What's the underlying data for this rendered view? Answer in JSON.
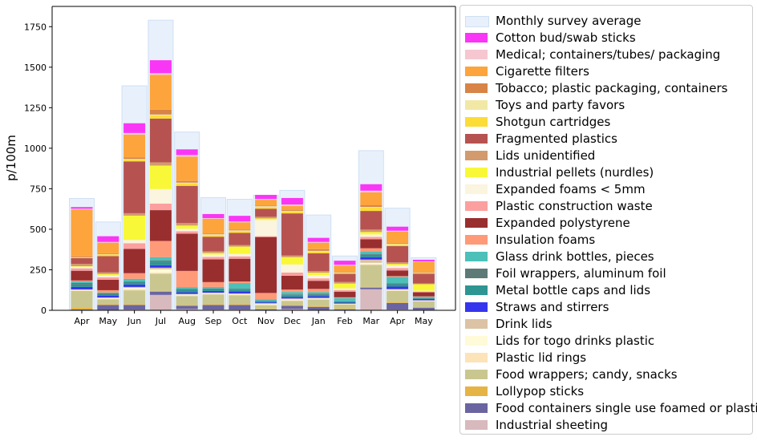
{
  "chart_data": {
    "type": "bar",
    "stacked": true,
    "ylabel": "p/100m",
    "xlabel": "",
    "ylim": [
      0,
      1875
    ],
    "yticks": [
      0,
      250,
      500,
      750,
      1000,
      1250,
      1500,
      1750
    ],
    "categories": [
      "Apr",
      "May",
      "Jun",
      "Jul",
      "Aug",
      "Sep",
      "Oct",
      "Nov",
      "Dec",
      "Jan",
      "Feb",
      "Mar",
      "Apr",
      "May"
    ],
    "background_series": {
      "name": "Monthly survey average",
      "color": "#e8f1fb",
      "edge": "#cfe0f3",
      "values": [
        690,
        545,
        1385,
        1790,
        1100,
        695,
        685,
        710,
        740,
        588,
        335,
        985,
        630,
        325
      ]
    },
    "series": [
      {
        "name": "Industrial sheeting",
        "color": "#d8b9bd",
        "values": [
          3,
          3,
          5,
          95,
          8,
          5,
          5,
          3,
          8,
          3,
          3,
          130,
          5,
          3
        ]
      },
      {
        "name": "Food containers single use foamed or plastic",
        "color": "#6a64a0",
        "values": [
          2,
          30,
          28,
          20,
          20,
          28,
          28,
          3,
          20,
          18,
          2,
          10,
          40,
          12
        ]
      },
      {
        "name": "Lollypop sticks",
        "color": "#e6b345",
        "values": [
          10,
          5,
          5,
          5,
          5,
          5,
          5,
          5,
          5,
          5,
          5,
          5,
          5,
          5
        ]
      },
      {
        "name": "Food wrappers; candy, snacks",
        "color": "#c9c78f",
        "values": [
          105,
          30,
          85,
          105,
          55,
          60,
          55,
          20,
          25,
          40,
          25,
          135,
          70,
          35
        ]
      },
      {
        "name": "Plastic lid rings",
        "color": "#fde3b8",
        "values": [
          3,
          5,
          8,
          8,
          5,
          5,
          5,
          5,
          5,
          5,
          2,
          5,
          5,
          3
        ]
      },
      {
        "name": "Lids for togo drinks plastic",
        "color": "#fffad8",
        "values": [
          3,
          3,
          8,
          20,
          5,
          3,
          3,
          3,
          5,
          3,
          2,
          8,
          3,
          2
        ]
      },
      {
        "name": "Drink lids",
        "color": "#dcc3a5",
        "values": [
          3,
          3,
          5,
          10,
          3,
          3,
          3,
          5,
          5,
          3,
          3,
          20,
          3,
          2
        ]
      },
      {
        "name": "Straws and stirrers",
        "color": "#3535ee",
        "values": [
          15,
          10,
          15,
          15,
          10,
          10,
          12,
          5,
          10,
          10,
          5,
          15,
          15,
          8
        ]
      },
      {
        "name": "Metal bottle caps and lids",
        "color": "#2e9593",
        "values": [
          15,
          10,
          15,
          20,
          15,
          10,
          12,
          5,
          10,
          10,
          5,
          15,
          15,
          5
        ]
      },
      {
        "name": "Foil wrappers, aluminum foil",
        "color": "#5e7a76",
        "values": [
          10,
          5,
          5,
          10,
          5,
          5,
          5,
          3,
          5,
          5,
          3,
          5,
          5,
          3
        ]
      },
      {
        "name": "Glass drink bottles, pieces",
        "color": "#4cc0b9",
        "values": [
          10,
          5,
          15,
          20,
          12,
          10,
          35,
          10,
          15,
          10,
          20,
          15,
          40,
          5
        ]
      },
      {
        "name": "Insulation foams",
        "color": "#fe9a78",
        "values": [
          5,
          15,
          35,
          100,
          100,
          30,
          10,
          40,
          15,
          20,
          5,
          20,
          5,
          3
        ]
      },
      {
        "name": "Expanded polystyrene",
        "color": "#992e2f",
        "values": [
          60,
          65,
          150,
          190,
          230,
          140,
          140,
          345,
          85,
          50,
          35,
          55,
          35,
          25
        ]
      },
      {
        "name": "Plastic construction waste",
        "color": "#fc9f9f",
        "values": [
          15,
          15,
          35,
          40,
          15,
          15,
          15,
          5,
          20,
          15,
          10,
          15,
          15,
          5
        ]
      },
      {
        "name": "Expanded foams < 5mm",
        "color": "#fbf4de",
        "values": [
          10,
          10,
          20,
          90,
          15,
          15,
          15,
          100,
          50,
          20,
          10,
          15,
          15,
          5
        ]
      },
      {
        "name": "Industrial pellets (nurdles)",
        "color": "#f8f838",
        "values": [
          3,
          10,
          150,
          145,
          20,
          10,
          45,
          10,
          45,
          15,
          30,
          15,
          10,
          40
        ]
      },
      {
        "name": "Lids unidentified",
        "color": "#d39a6d",
        "values": [
          15,
          10,
          15,
          20,
          15,
          10,
          10,
          10,
          10,
          10,
          10,
          15,
          10,
          5
        ]
      },
      {
        "name": "Fragmented plastics",
        "color": "#b65351",
        "values": [
          35,
          100,
          320,
          270,
          230,
          90,
          75,
          50,
          260,
          110,
          50,
          115,
          100,
          60
        ]
      },
      {
        "name": "Shotgun cartridges",
        "color": "#fcdc37",
        "values": [
          3,
          10,
          10,
          20,
          15,
          10,
          10,
          10,
          10,
          10,
          5,
          20,
          10,
          3
        ]
      },
      {
        "name": "Toys and party favors",
        "color": "#f2e8a6",
        "values": [
          2,
          3,
          5,
          5,
          5,
          5,
          5,
          5,
          5,
          5,
          3,
          5,
          5,
          2
        ]
      },
      {
        "name": "Tobacco; plastic packaging, containers",
        "color": "#d78446",
        "values": [
          5,
          5,
          10,
          30,
          10,
          5,
          5,
          5,
          5,
          10,
          3,
          10,
          5,
          3
        ]
      },
      {
        "name": "Cigarette filters",
        "color": "#fda43c",
        "values": [
          290,
          65,
          140,
          215,
          150,
          90,
          45,
          35,
          25,
          40,
          40,
          80,
          70,
          65
        ]
      },
      {
        "name": "Medical; containers/tubes/ packaging",
        "color": "#f6c7d0",
        "values": [
          5,
          5,
          10,
          10,
          10,
          5,
          5,
          5,
          10,
          5,
          5,
          10,
          5,
          3
        ]
      },
      {
        "name": "Cotton bud/swab sticks",
        "color": "#fa36f6",
        "values": [
          10,
          35,
          60,
          80,
          35,
          25,
          35,
          25,
          40,
          25,
          25,
          40,
          25,
          10
        ]
      }
    ]
  }
}
